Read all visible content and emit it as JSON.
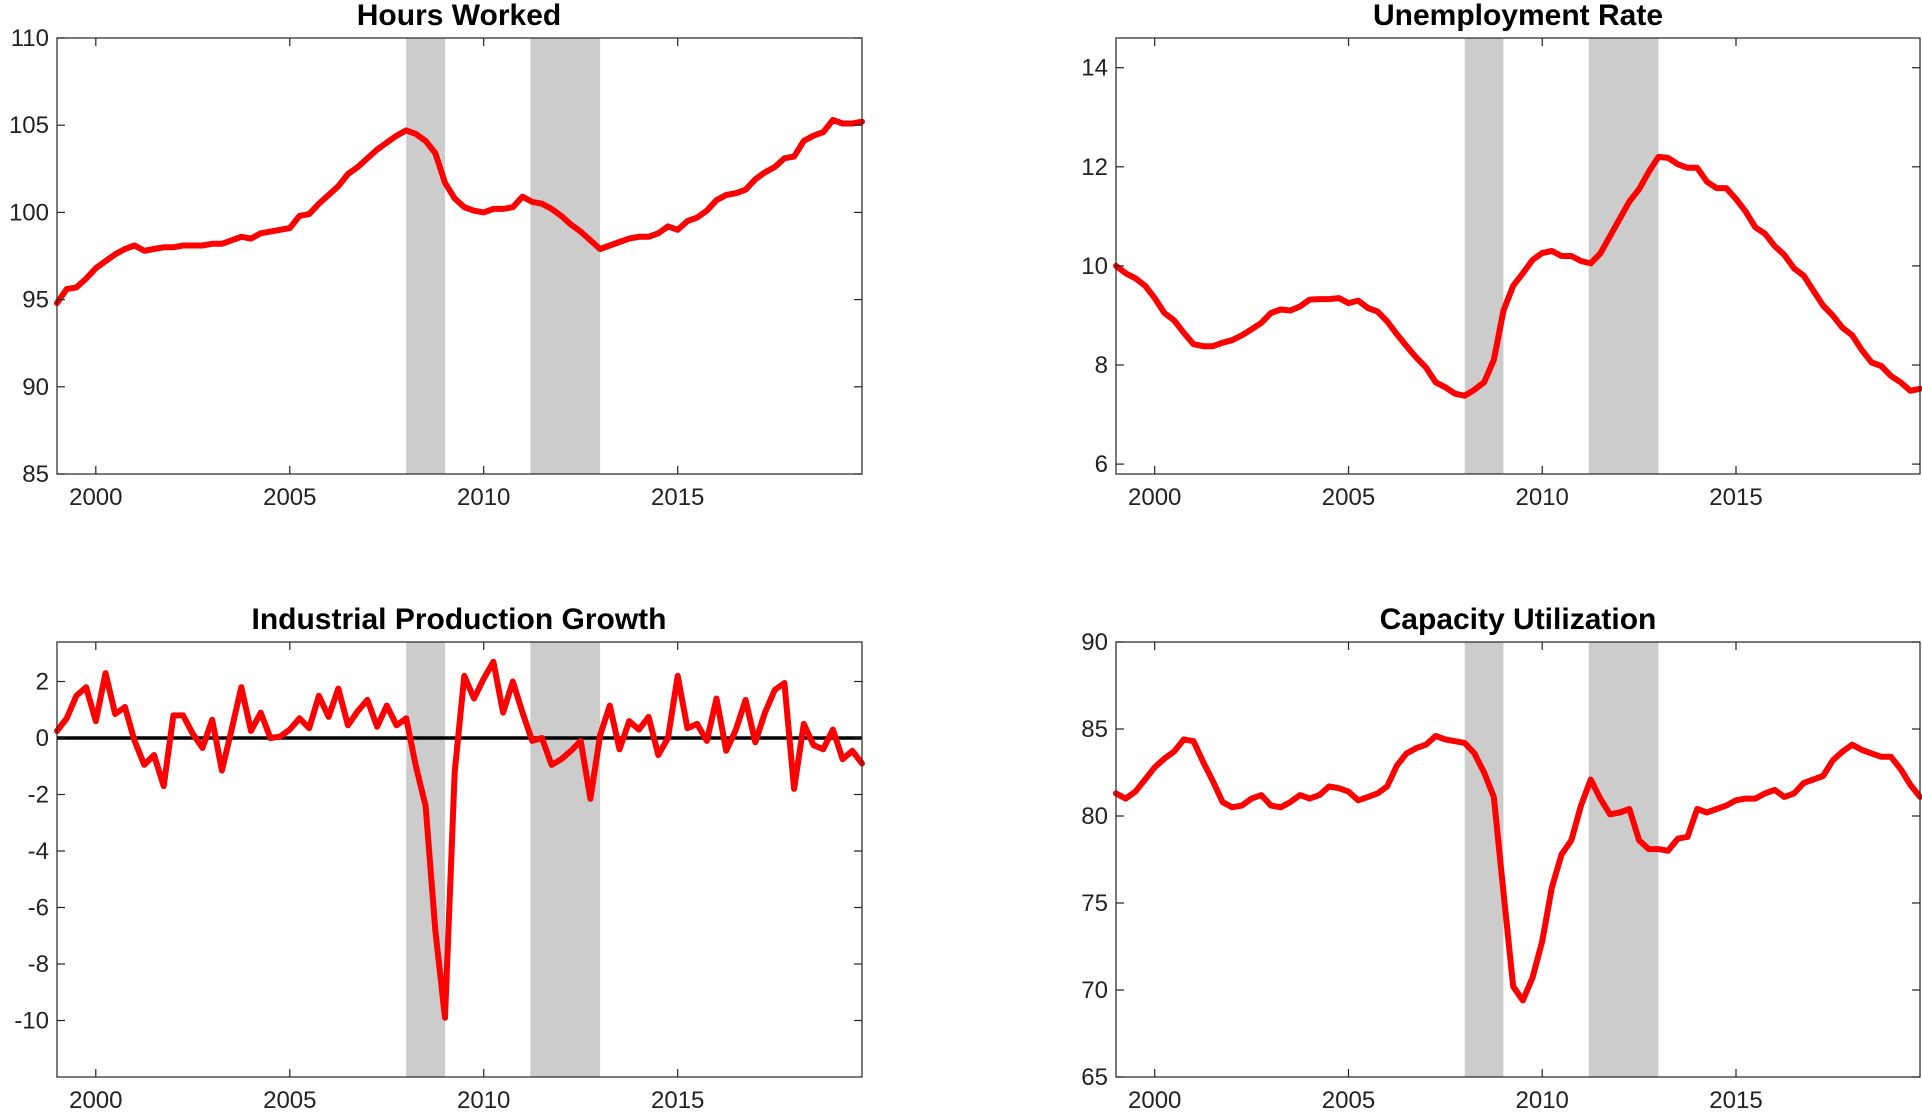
{
  "chart_data": [
    {
      "type": "line",
      "title": "Hours Worked",
      "xlim": [
        1999,
        2019.75
      ],
      "ylim": [
        85,
        110
      ],
      "xticks": [
        2000,
        2005,
        2010,
        2015
      ],
      "yticks": [
        85,
        90,
        95,
        100,
        105,
        110
      ],
      "recessions": [
        [
          2008.0,
          2009.0
        ],
        [
          2011.2,
          2013.0
        ]
      ],
      "zero_line": false,
      "colors": {
        "series": "#ff0000",
        "recession": "#cccccc"
      },
      "series": [
        {
          "x": [
            1999.0,
            1999.25,
            1999.5,
            1999.75,
            2000.0,
            2000.25,
            2000.5,
            2000.75,
            2001.0,
            2001.25,
            2001.5,
            2001.75,
            2002.0,
            2002.25,
            2002.5,
            2002.75,
            2003.0,
            2003.25,
            2003.5,
            2003.75,
            2004.0,
            2004.25,
            2004.5,
            2004.75,
            2005.0,
            2005.25,
            2005.5,
            2005.75,
            2006.0,
            2006.25,
            2006.5,
            2006.75,
            2007.0,
            2007.25,
            2007.5,
            2007.75,
            2008.0,
            2008.25,
            2008.5,
            2008.75,
            2009.0,
            2009.25,
            2009.5,
            2009.75,
            2010.0,
            2010.25,
            2010.5,
            2010.75,
            2011.0,
            2011.25,
            2011.5,
            2011.75,
            2012.0,
            2012.25,
            2012.5,
            2012.75,
            2013.0,
            2013.25,
            2013.5,
            2013.75,
            2014.0,
            2014.25,
            2014.5,
            2014.75,
            2015.0,
            2015.25,
            2015.5,
            2015.75,
            2016.0,
            2016.25,
            2016.5,
            2016.75,
            2017.0,
            2017.25,
            2017.5,
            2017.75,
            2018.0,
            2018.25,
            2018.5,
            2018.75,
            2019.0,
            2019.25,
            2019.5,
            2019.75
          ],
          "values": [
            94.8,
            95.6,
            95.7,
            96.2,
            96.8,
            97.2,
            97.6,
            97.9,
            98.1,
            97.8,
            97.9,
            98.0,
            98.0,
            98.1,
            98.1,
            98.1,
            98.2,
            98.2,
            98.4,
            98.6,
            98.5,
            98.8,
            98.9,
            99.0,
            99.1,
            99.8,
            99.9,
            100.5,
            101.0,
            101.5,
            102.2,
            102.6,
            103.1,
            103.6,
            104.0,
            104.4,
            104.7,
            104.5,
            104.1,
            103.4,
            101.7,
            100.8,
            100.3,
            100.1,
            100.0,
            100.2,
            100.2,
            100.3,
            100.9,
            100.6,
            100.5,
            100.2,
            99.8,
            99.3,
            98.9,
            98.4,
            97.9,
            98.1,
            98.3,
            98.5,
            98.6,
            98.6,
            98.8,
            99.2,
            99.0,
            99.5,
            99.7,
            100.1,
            100.7,
            101.0,
            101.1,
            101.3,
            101.9,
            102.3,
            102.6,
            103.1,
            103.2,
            104.1,
            104.4,
            104.6,
            105.3,
            105.1,
            105.1,
            105.2
          ]
        }
      ]
    },
    {
      "type": "line",
      "title": "Unemployment Rate",
      "xlim": [
        1999,
        2019.75
      ],
      "ylim": [
        5.8,
        14.6
      ],
      "xticks": [
        2000,
        2005,
        2010,
        2015
      ],
      "yticks": [
        6,
        8,
        10,
        12,
        14
      ],
      "recessions": [
        [
          2008.0,
          2009.0
        ],
        [
          2011.2,
          2013.0
        ]
      ],
      "zero_line": false,
      "colors": {
        "series": "#ff0000",
        "recession": "#cccccc"
      },
      "series": [
        {
          "x": [
            1999.0,
            1999.25,
            1999.5,
            1999.75,
            2000.0,
            2000.25,
            2000.5,
            2000.75,
            2001.0,
            2001.25,
            2001.5,
            2001.75,
            2002.0,
            2002.25,
            2002.5,
            2002.75,
            2003.0,
            2003.25,
            2003.5,
            2003.75,
            2004.0,
            2004.25,
            2004.5,
            2004.75,
            2005.0,
            2005.25,
            2005.5,
            2005.75,
            2006.0,
            2006.25,
            2006.5,
            2006.75,
            2007.0,
            2007.25,
            2007.5,
            2007.75,
            2008.0,
            2008.25,
            2008.5,
            2008.75,
            2009.0,
            2009.25,
            2009.5,
            2009.75,
            2010.0,
            2010.25,
            2010.5,
            2010.75,
            2011.0,
            2011.25,
            2011.5,
            2011.75,
            2012.0,
            2012.25,
            2012.5,
            2012.75,
            2013.0,
            2013.25,
            2013.5,
            2013.75,
            2014.0,
            2014.25,
            2014.5,
            2014.75,
            2015.0,
            2015.25,
            2015.5,
            2015.75,
            2016.0,
            2016.25,
            2016.5,
            2016.75,
            2017.0,
            2017.25,
            2017.5,
            2017.75,
            2018.0,
            2018.25,
            2018.5,
            2018.75,
            2019.0,
            2019.25,
            2019.5,
            2019.75
          ],
          "values": [
            10.0,
            9.85,
            9.75,
            9.6,
            9.35,
            9.05,
            8.9,
            8.65,
            8.42,
            8.38,
            8.38,
            8.45,
            8.5,
            8.6,
            8.72,
            8.85,
            9.05,
            9.12,
            9.1,
            9.18,
            9.32,
            9.33,
            9.33,
            9.35,
            9.25,
            9.3,
            9.15,
            9.08,
            8.88,
            8.62,
            8.38,
            8.15,
            7.95,
            7.65,
            7.55,
            7.42,
            7.38,
            7.5,
            7.65,
            8.1,
            9.1,
            9.6,
            9.85,
            10.12,
            10.26,
            10.3,
            10.2,
            10.2,
            10.1,
            10.05,
            10.25,
            10.6,
            10.95,
            11.3,
            11.55,
            11.9,
            12.2,
            12.18,
            12.05,
            11.98,
            11.98,
            11.7,
            11.57,
            11.57,
            11.35,
            11.1,
            10.78,
            10.65,
            10.4,
            10.22,
            9.95,
            9.8,
            9.5,
            9.2,
            9.0,
            8.75,
            8.6,
            8.3,
            8.05,
            7.98,
            7.78,
            7.65,
            7.48,
            7.52
          ]
        }
      ]
    },
    {
      "type": "line",
      "title": "Industrial Production Growth",
      "xlim": [
        1999,
        2019.75
      ],
      "ylim": [
        -12,
        3.4
      ],
      "xticks": [
        2000,
        2005,
        2010,
        2015
      ],
      "yticks": [
        -10,
        -8,
        -6,
        -4,
        -2,
        0,
        2
      ],
      "recessions": [
        [
          2008.0,
          2009.0
        ],
        [
          2011.2,
          2013.0
        ]
      ],
      "zero_line": true,
      "colors": {
        "series": "#ff0000",
        "recession": "#cccccc",
        "zero_line": "#000000"
      },
      "series": [
        {
          "x": [
            1999.0,
            1999.25,
            1999.5,
            1999.75,
            2000.0,
            2000.25,
            2000.5,
            2000.75,
            2001.0,
            2001.25,
            2001.5,
            2001.75,
            2002.0,
            2002.25,
            2002.5,
            2002.75,
            2003.0,
            2003.25,
            2003.5,
            2003.75,
            2004.0,
            2004.25,
            2004.5,
            2004.75,
            2005.0,
            2005.25,
            2005.5,
            2005.75,
            2006.0,
            2006.25,
            2006.5,
            2006.75,
            2007.0,
            2007.25,
            2007.5,
            2007.75,
            2008.0,
            2008.25,
            2008.5,
            2008.75,
            2009.0,
            2009.25,
            2009.5,
            2009.75,
            2010.0,
            2010.25,
            2010.5,
            2010.75,
            2011.0,
            2011.25,
            2011.5,
            2011.75,
            2012.0,
            2012.25,
            2012.5,
            2012.75,
            2013.0,
            2013.25,
            2013.5,
            2013.75,
            2014.0,
            2014.25,
            2014.5,
            2014.75,
            2015.0,
            2015.25,
            2015.5,
            2015.75,
            2016.0,
            2016.25,
            2016.5,
            2016.75,
            2017.0,
            2017.25,
            2017.5,
            2017.75,
            2018.0,
            2018.25,
            2018.5,
            2018.75,
            2019.0,
            2019.25,
            2019.5,
            2019.75
          ],
          "values": [
            0.25,
            0.7,
            1.5,
            1.8,
            0.6,
            2.3,
            0.85,
            1.1,
            -0.1,
            -0.95,
            -0.6,
            -1.7,
            0.8,
            0.8,
            0.15,
            -0.35,
            0.65,
            -1.15,
            0.3,
            1.8,
            0.25,
            0.9,
            0.0,
            0.05,
            0.3,
            0.7,
            0.35,
            1.5,
            0.75,
            1.75,
            0.45,
            0.95,
            1.35,
            0.4,
            1.15,
            0.45,
            0.7,
            -1.0,
            -2.4,
            -6.8,
            -9.9,
            -1.2,
            2.2,
            1.4,
            2.1,
            2.7,
            0.9,
            2.0,
            0.9,
            -0.1,
            0.0,
            -0.95,
            -0.75,
            -0.45,
            -0.1,
            -2.15,
            0.1,
            1.15,
            -0.4,
            0.6,
            0.3,
            0.75,
            -0.6,
            0.0,
            2.2,
            0.35,
            0.5,
            -0.1,
            1.4,
            -0.45,
            0.3,
            1.35,
            -0.15,
            0.9,
            1.7,
            1.95,
            -1.8,
            0.5,
            -0.25,
            -0.4,
            0.3,
            -0.75,
            -0.45,
            -0.9
          ]
        }
      ]
    },
    {
      "type": "line",
      "title": "Capacity Utilization",
      "xlim": [
        1999,
        2019.75
      ],
      "ylim": [
        65,
        90
      ],
      "xticks": [
        2000,
        2005,
        2010,
        2015
      ],
      "yticks": [
        65,
        70,
        75,
        80,
        85,
        90
      ],
      "recessions": [
        [
          2008.0,
          2009.0
        ],
        [
          2011.2,
          2013.0
        ]
      ],
      "zero_line": false,
      "colors": {
        "series": "#ff0000",
        "recession": "#cccccc"
      },
      "series": [
        {
          "x": [
            1999.0,
            1999.25,
            1999.5,
            1999.75,
            2000.0,
            2000.25,
            2000.5,
            2000.75,
            2001.0,
            2001.25,
            2001.5,
            2001.75,
            2002.0,
            2002.25,
            2002.5,
            2002.75,
            2003.0,
            2003.25,
            2003.5,
            2003.75,
            2004.0,
            2004.25,
            2004.5,
            2004.75,
            2005.0,
            2005.25,
            2005.5,
            2005.75,
            2006.0,
            2006.25,
            2006.5,
            2006.75,
            2007.0,
            2007.25,
            2007.5,
            2007.75,
            2008.0,
            2008.25,
            2008.5,
            2008.75,
            2009.0,
            2009.25,
            2009.5,
            2009.75,
            2010.0,
            2010.25,
            2010.5,
            2010.75,
            2011.0,
            2011.25,
            2011.5,
            2011.75,
            2012.0,
            2012.25,
            2012.5,
            2012.75,
            2013.0,
            2013.25,
            2013.5,
            2013.75,
            2014.0,
            2014.25,
            2014.5,
            2014.75,
            2015.0,
            2015.25,
            2015.5,
            2015.75,
            2016.0,
            2016.25,
            2016.5,
            2016.75,
            2017.0,
            2017.25,
            2017.5,
            2017.75,
            2018.0,
            2018.25,
            2018.5,
            2018.75,
            2019.0,
            2019.25,
            2019.5,
            2019.75
          ],
          "values": [
            81.3,
            81.0,
            81.4,
            82.1,
            82.8,
            83.3,
            83.7,
            84.4,
            84.3,
            83.1,
            82.0,
            80.8,
            80.5,
            80.6,
            81.0,
            81.2,
            80.6,
            80.5,
            80.8,
            81.2,
            81.0,
            81.2,
            81.7,
            81.6,
            81.4,
            80.9,
            81.1,
            81.3,
            81.7,
            82.9,
            83.6,
            83.9,
            84.1,
            84.6,
            84.4,
            84.3,
            84.2,
            83.6,
            82.5,
            81.1,
            75.6,
            70.2,
            69.4,
            70.7,
            72.8,
            75.9,
            77.8,
            78.6,
            80.6,
            82.1,
            81.0,
            80.1,
            80.2,
            80.4,
            78.6,
            78.1,
            78.1,
            78.0,
            78.7,
            78.8,
            80.4,
            80.2,
            80.4,
            80.6,
            80.9,
            81.0,
            81.0,
            81.3,
            81.5,
            81.1,
            81.3,
            81.9,
            82.1,
            82.3,
            83.2,
            83.7,
            84.1,
            83.8,
            83.6,
            83.4,
            83.4,
            82.7,
            81.8,
            81.1
          ]
        }
      ]
    }
  ]
}
